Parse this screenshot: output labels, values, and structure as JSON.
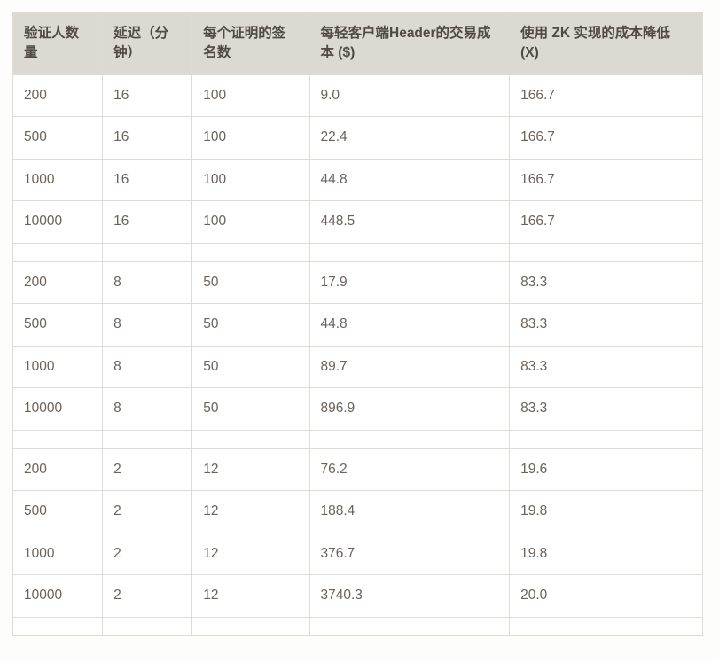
{
  "table": {
    "type": "table",
    "background_color": "#ffffff",
    "border_color": "#dedbd6",
    "header_bg": "#dcd9d3",
    "header_text_color": "#514a42",
    "cell_text_color": "#6b6258",
    "font_size_pt": 12,
    "header_font_weight": 700,
    "column_widths_pct": [
      13,
      13,
      17,
      29,
      28
    ],
    "columns": [
      "验证人数量",
      "延迟（分钟）",
      "每个证明的签名数",
      "每轻客户端Header的交易成本 ($)",
      "使用 ZK 实现的成本降低 (X)"
    ],
    "rows": [
      [
        "200",
        "16",
        "100",
        "9.0",
        "166.7"
      ],
      [
        "500",
        "16",
        "100",
        "22.4",
        "166.7"
      ],
      [
        "1000",
        "16",
        "100",
        "44.8",
        "166.7"
      ],
      [
        "10000",
        "16",
        "100",
        "448.5",
        "166.7"
      ],
      [
        "",
        "",
        "",
        "",
        ""
      ],
      [
        "200",
        "8",
        "50",
        "17.9",
        "83.3"
      ],
      [
        "500",
        "8",
        "50",
        "44.8",
        "83.3"
      ],
      [
        "1000",
        "8",
        "50",
        "89.7",
        "83.3"
      ],
      [
        "10000",
        "8",
        "50",
        "896.9",
        "83.3"
      ],
      [
        "",
        "",
        "",
        "",
        ""
      ],
      [
        "200",
        "2",
        "12",
        "76.2",
        "19.6"
      ],
      [
        "500",
        "2",
        "12",
        "188.4",
        "19.8"
      ],
      [
        "1000",
        "2",
        "12",
        "376.7",
        "19.8"
      ],
      [
        "10000",
        "2",
        "12",
        "3740.3",
        "20.0"
      ],
      [
        "",
        "",
        "",
        "",
        ""
      ]
    ]
  }
}
